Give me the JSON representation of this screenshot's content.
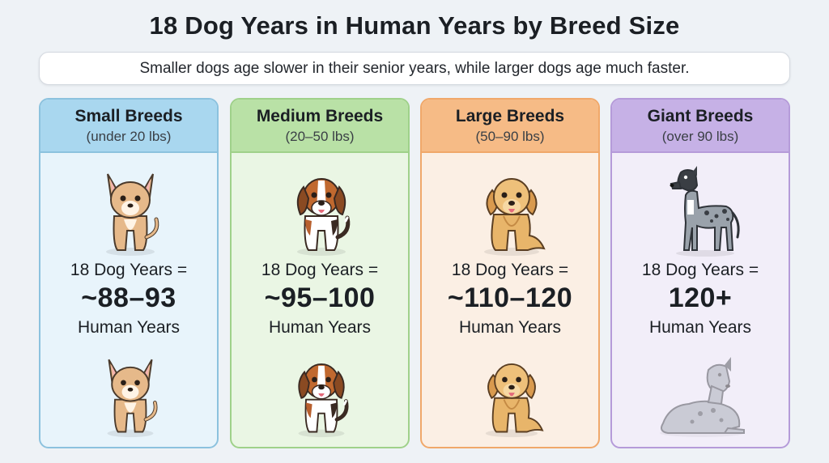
{
  "title": "18 Dog Years in Human Years by Breed Size",
  "subtitle": "Smaller dogs age slower in their senior years, while larger dogs age much faster.",
  "cards": [
    {
      "name": "Small Breeds",
      "range": "(under 20 lbs)",
      "label": "18 Dog Years =",
      "value": "~88–93",
      "unit": "Human Years",
      "accent": "#a9d7ef",
      "icons": [
        "chihuahua-icon",
        "senior-chihuahua-icon"
      ]
    },
    {
      "name": "Medium Breeds",
      "range": "(20–50 lbs)",
      "label": "18 Dog Years =",
      "value": "~95–100",
      "unit": "Human Years",
      "accent": "#b9e1a6",
      "icons": [
        "beagle-icon",
        "senior-beagle-icon"
      ]
    },
    {
      "name": "Large Breeds",
      "range": "(50–90 lbs)",
      "label": "18 Dog Years =",
      "value": "~110–120",
      "unit": "Human Years",
      "accent": "#f6bb86",
      "icons": [
        "golden-retriever-icon",
        "senior-golden-retriever-icon"
      ]
    },
    {
      "name": "Giant Breeds",
      "range": "(over 90 lbs)",
      "label": "18 Dog Years =",
      "value": "120+",
      "unit": "Human Years",
      "accent": "#c6b1e6",
      "icons": [
        "great-dane-icon",
        "faded-great-dane-icon"
      ]
    }
  ]
}
